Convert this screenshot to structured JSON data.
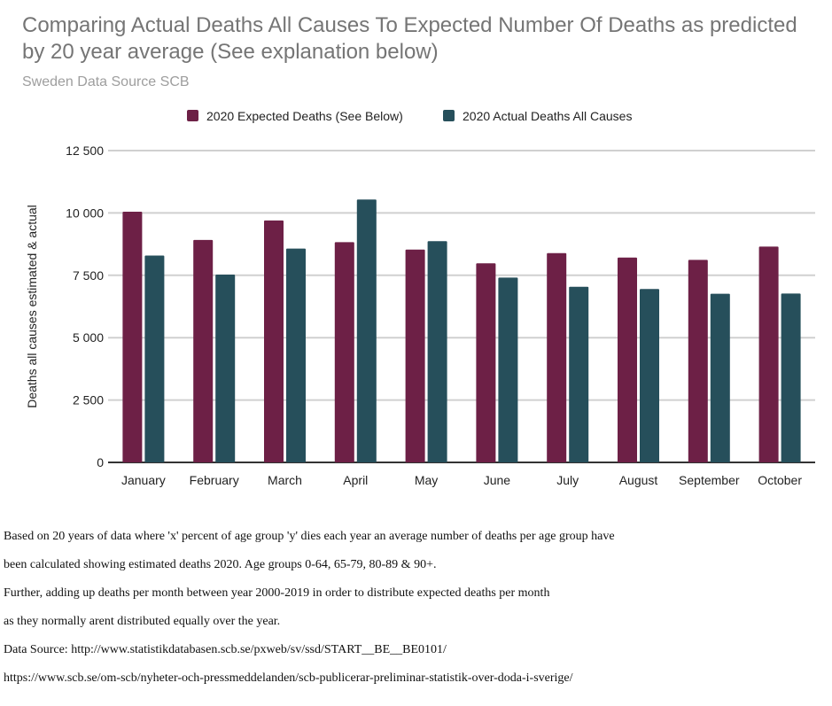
{
  "header": {
    "title": "Comparing Actual Deaths All Causes To Expected Number Of Deaths as predicted by 20 year average (See explanation below)",
    "subtitle": "Sweden Data Source SCB"
  },
  "chart_data": {
    "type": "bar",
    "title": "Comparing Actual Deaths All Causes To Expected Number Of Deaths as predicted by 20 year average (See explanation below)",
    "subtitle": "Sweden Data Source SCB",
    "xlabel": "",
    "ylabel": "Deaths all causes estimated & actual",
    "categories": [
      "January",
      "February",
      "March",
      "April",
      "May",
      "June",
      "July",
      "August",
      "September",
      "October"
    ],
    "series": [
      {
        "name": "2020 Expected Deaths (See Below)",
        "color": "#6d2046",
        "values": [
          10050,
          8920,
          9700,
          8830,
          8530,
          7980,
          8390,
          8210,
          8120,
          8650
        ]
      },
      {
        "name": "2020 Actual Deaths All Causes",
        "color": "#264f5b",
        "values": [
          8290,
          7530,
          8570,
          10540,
          8870,
          7410,
          7040,
          6950,
          6760,
          6770
        ]
      }
    ],
    "yticks": [
      0,
      2500,
      5000,
      7500,
      10000,
      12500
    ],
    "ytick_labels": [
      "0",
      "2 500",
      "5 000",
      "7 500",
      "10 000",
      "12 500"
    ],
    "ylim": [
      0,
      12500
    ],
    "grid": true,
    "legend": "top-center"
  },
  "notes": [
    "Based on 20 years of data where 'x' percent of age group 'y' dies each year an average number of deaths per age group have",
    "been calculated showing estimated deaths 2020. Age groups 0-64, 65-79, 80-89 & 90+.",
    "Further, adding up deaths per month between year 2000-2019 in order to distribute expected deaths per month",
    "as they normally arent distributed equally over the year.",
    "Data Source: http://www.statistikdatabasen.scb.se/pxweb/sv/ssd/START__BE__BE0101/",
    "https://www.scb.se/om-scb/nyheter-och-pressmeddelanden/scb-publicerar-preliminar-statistik-over-doda-i-sverige/"
  ]
}
